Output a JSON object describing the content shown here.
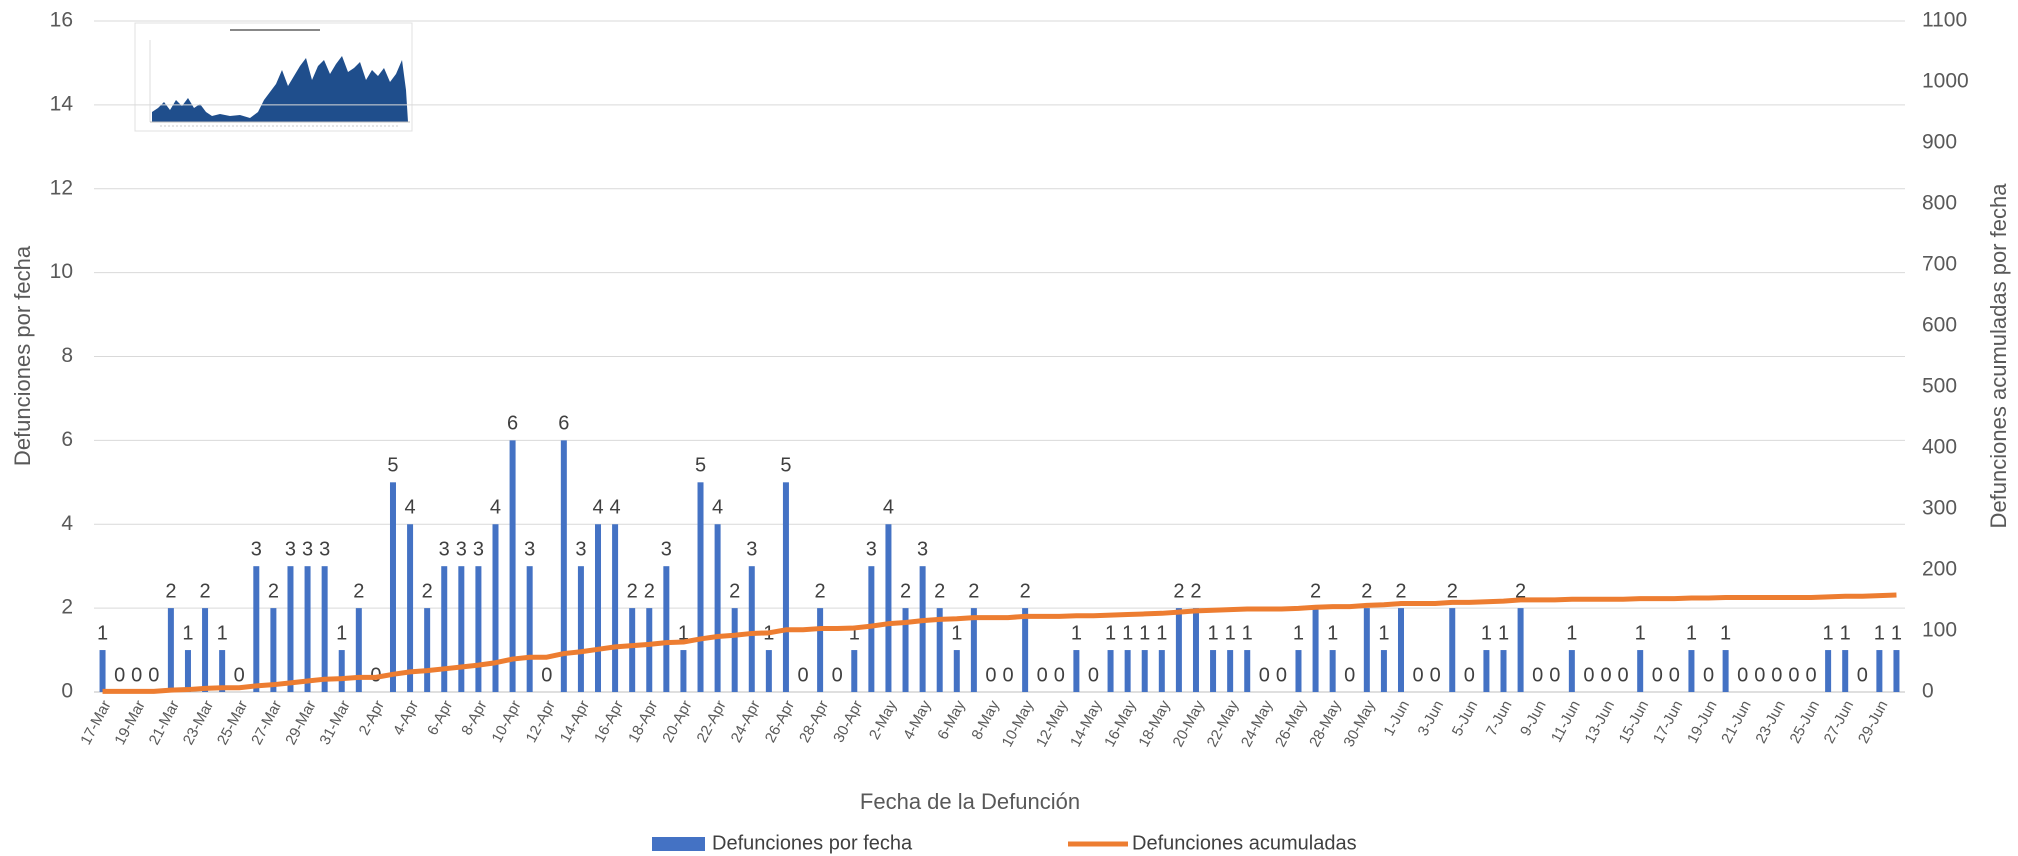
{
  "chart_data": {
    "type": "bar_line",
    "x_label": "Fecha de la Defunción",
    "y_label": "Defunciones por fecha",
    "y2_label": "Defunciones acumuladas por fecha",
    "categories": [
      "17-Mar",
      null,
      "19-Mar",
      null,
      "21-Mar",
      null,
      "23-Mar",
      null,
      "25-Mar",
      null,
      "27-Mar",
      null,
      "29-Mar",
      null,
      "31-Mar",
      null,
      "2-Apr",
      null,
      "4-Apr",
      null,
      "6-Apr",
      null,
      "8-Apr",
      null,
      "10-Apr",
      null,
      "12-Apr",
      null,
      "14-Apr",
      null,
      "16-Apr",
      null,
      "18-Apr",
      null,
      "20-Apr",
      null,
      "22-Apr",
      null,
      "24-Apr",
      null,
      "26-Apr",
      null,
      "28-Apr",
      null,
      "30-Apr",
      null,
      "2-May",
      null,
      "4-May",
      null,
      "6-May",
      null,
      "8-May",
      null,
      "10-May",
      null,
      "12-May",
      null,
      "14-May",
      null,
      "16-May",
      null,
      "18-May",
      null,
      "20-May",
      null,
      "22-May",
      null,
      "24-May",
      null,
      "26-May",
      null,
      "28-May",
      null,
      "30-May",
      null,
      "1-Jun",
      null,
      "3-Jun",
      null,
      "5-Jun",
      null,
      "7-Jun",
      null,
      "9-Jun",
      null,
      "11-Jun",
      null,
      "13-Jun",
      null,
      "15-Jun",
      null,
      "17-Jun",
      null,
      "19-Jun",
      null,
      "21-Jun",
      null,
      "23-Jun",
      null,
      "25-Jun",
      null,
      "27-Jun",
      null,
      "29-Jun",
      null
    ],
    "series": [
      {
        "name": "Defunciones por fecha",
        "type": "bar",
        "color": "#4472c4",
        "axis": "y",
        "values": [
          1,
          0,
          0,
          0,
          2,
          1,
          2,
          1,
          0,
          3,
          2,
          3,
          3,
          3,
          1,
          2,
          0,
          5,
          4,
          2,
          3,
          3,
          3,
          4,
          6,
          3,
          0,
          6,
          3,
          4,
          4,
          2,
          2,
          3,
          1,
          5,
          4,
          2,
          3,
          1,
          5,
          0,
          2,
          0,
          1,
          3,
          4,
          2,
          3,
          2,
          1,
          2,
          0,
          0,
          2,
          0,
          0,
          1,
          0,
          1,
          1,
          1,
          1,
          2,
          2,
          1,
          1,
          1,
          0,
          0,
          1,
          2,
          1,
          0,
          2,
          1,
          2,
          0,
          0,
          2,
          0,
          1,
          1,
          2,
          0,
          0,
          1,
          0,
          0,
          0,
          1,
          0,
          0,
          1,
          0,
          1,
          0,
          0,
          0,
          0,
          0,
          1,
          1,
          0,
          1,
          1
        ]
      },
      {
        "name": "Defunciones acumuladas",
        "type": "line",
        "color": "#ed7d31",
        "axis": "y2",
        "values": [
          1,
          1,
          1,
          1,
          3,
          4,
          6,
          7,
          7,
          10,
          12,
          15,
          18,
          21,
          22,
          24,
          24,
          29,
          33,
          35,
          38,
          41,
          44,
          48,
          54,
          57,
          57,
          63,
          66,
          70,
          74,
          76,
          78,
          81,
          82,
          87,
          91,
          93,
          96,
          97,
          102,
          102,
          104,
          104,
          105,
          108,
          112,
          114,
          117,
          119,
          120,
          122,
          122,
          122,
          124,
          124,
          124,
          125,
          125,
          126,
          127,
          128,
          129,
          131,
          133,
          134,
          135,
          136,
          136,
          136,
          137,
          139,
          140,
          140,
          142,
          143,
          145,
          145,
          145,
          147,
          147,
          148,
          149,
          151,
          151,
          151,
          152,
          152,
          152,
          152,
          153,
          153,
          153,
          154,
          154,
          155,
          155,
          155,
          155,
          155,
          155,
          156,
          157,
          157,
          158,
          159
        ]
      }
    ],
    "ylim": [
      0,
      16
    ],
    "yticks": [
      0,
      2,
      4,
      6,
      8,
      10,
      12,
      14,
      16
    ],
    "y2lim": [
      0,
      1100
    ],
    "y2ticks": [
      0,
      100,
      200,
      300,
      400,
      500,
      600,
      700,
      800,
      900,
      1000,
      1100
    ],
    "grid": true,
    "legend": "bottom"
  }
}
